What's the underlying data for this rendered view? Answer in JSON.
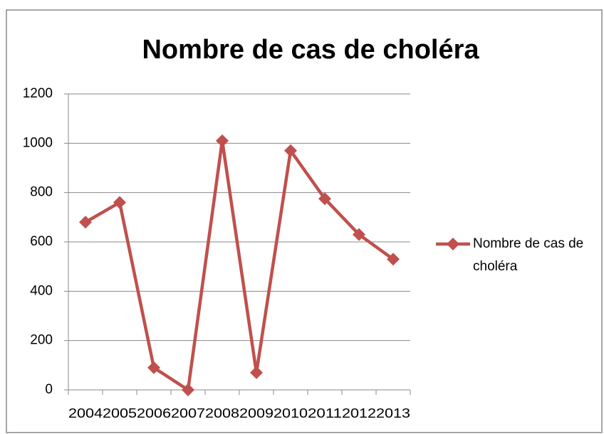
{
  "chart_data": {
    "type": "line",
    "title": "Nombre de cas de choléra",
    "categories": [
      "2004",
      "2005",
      "2006",
      "2007",
      "2008",
      "2009",
      "2010",
      "2011",
      "2012",
      "2013"
    ],
    "series": [
      {
        "name": "Nombre de cas de choléra",
        "color": "#c0504d",
        "values": [
          680,
          760,
          90,
          0,
          1010,
          70,
          970,
          775,
          630,
          530
        ]
      }
    ],
    "ylim": [
      0,
      1200
    ],
    "yticks": [
      0,
      200,
      400,
      600,
      800,
      1000,
      1200
    ],
    "grid": true,
    "legend": "right"
  }
}
